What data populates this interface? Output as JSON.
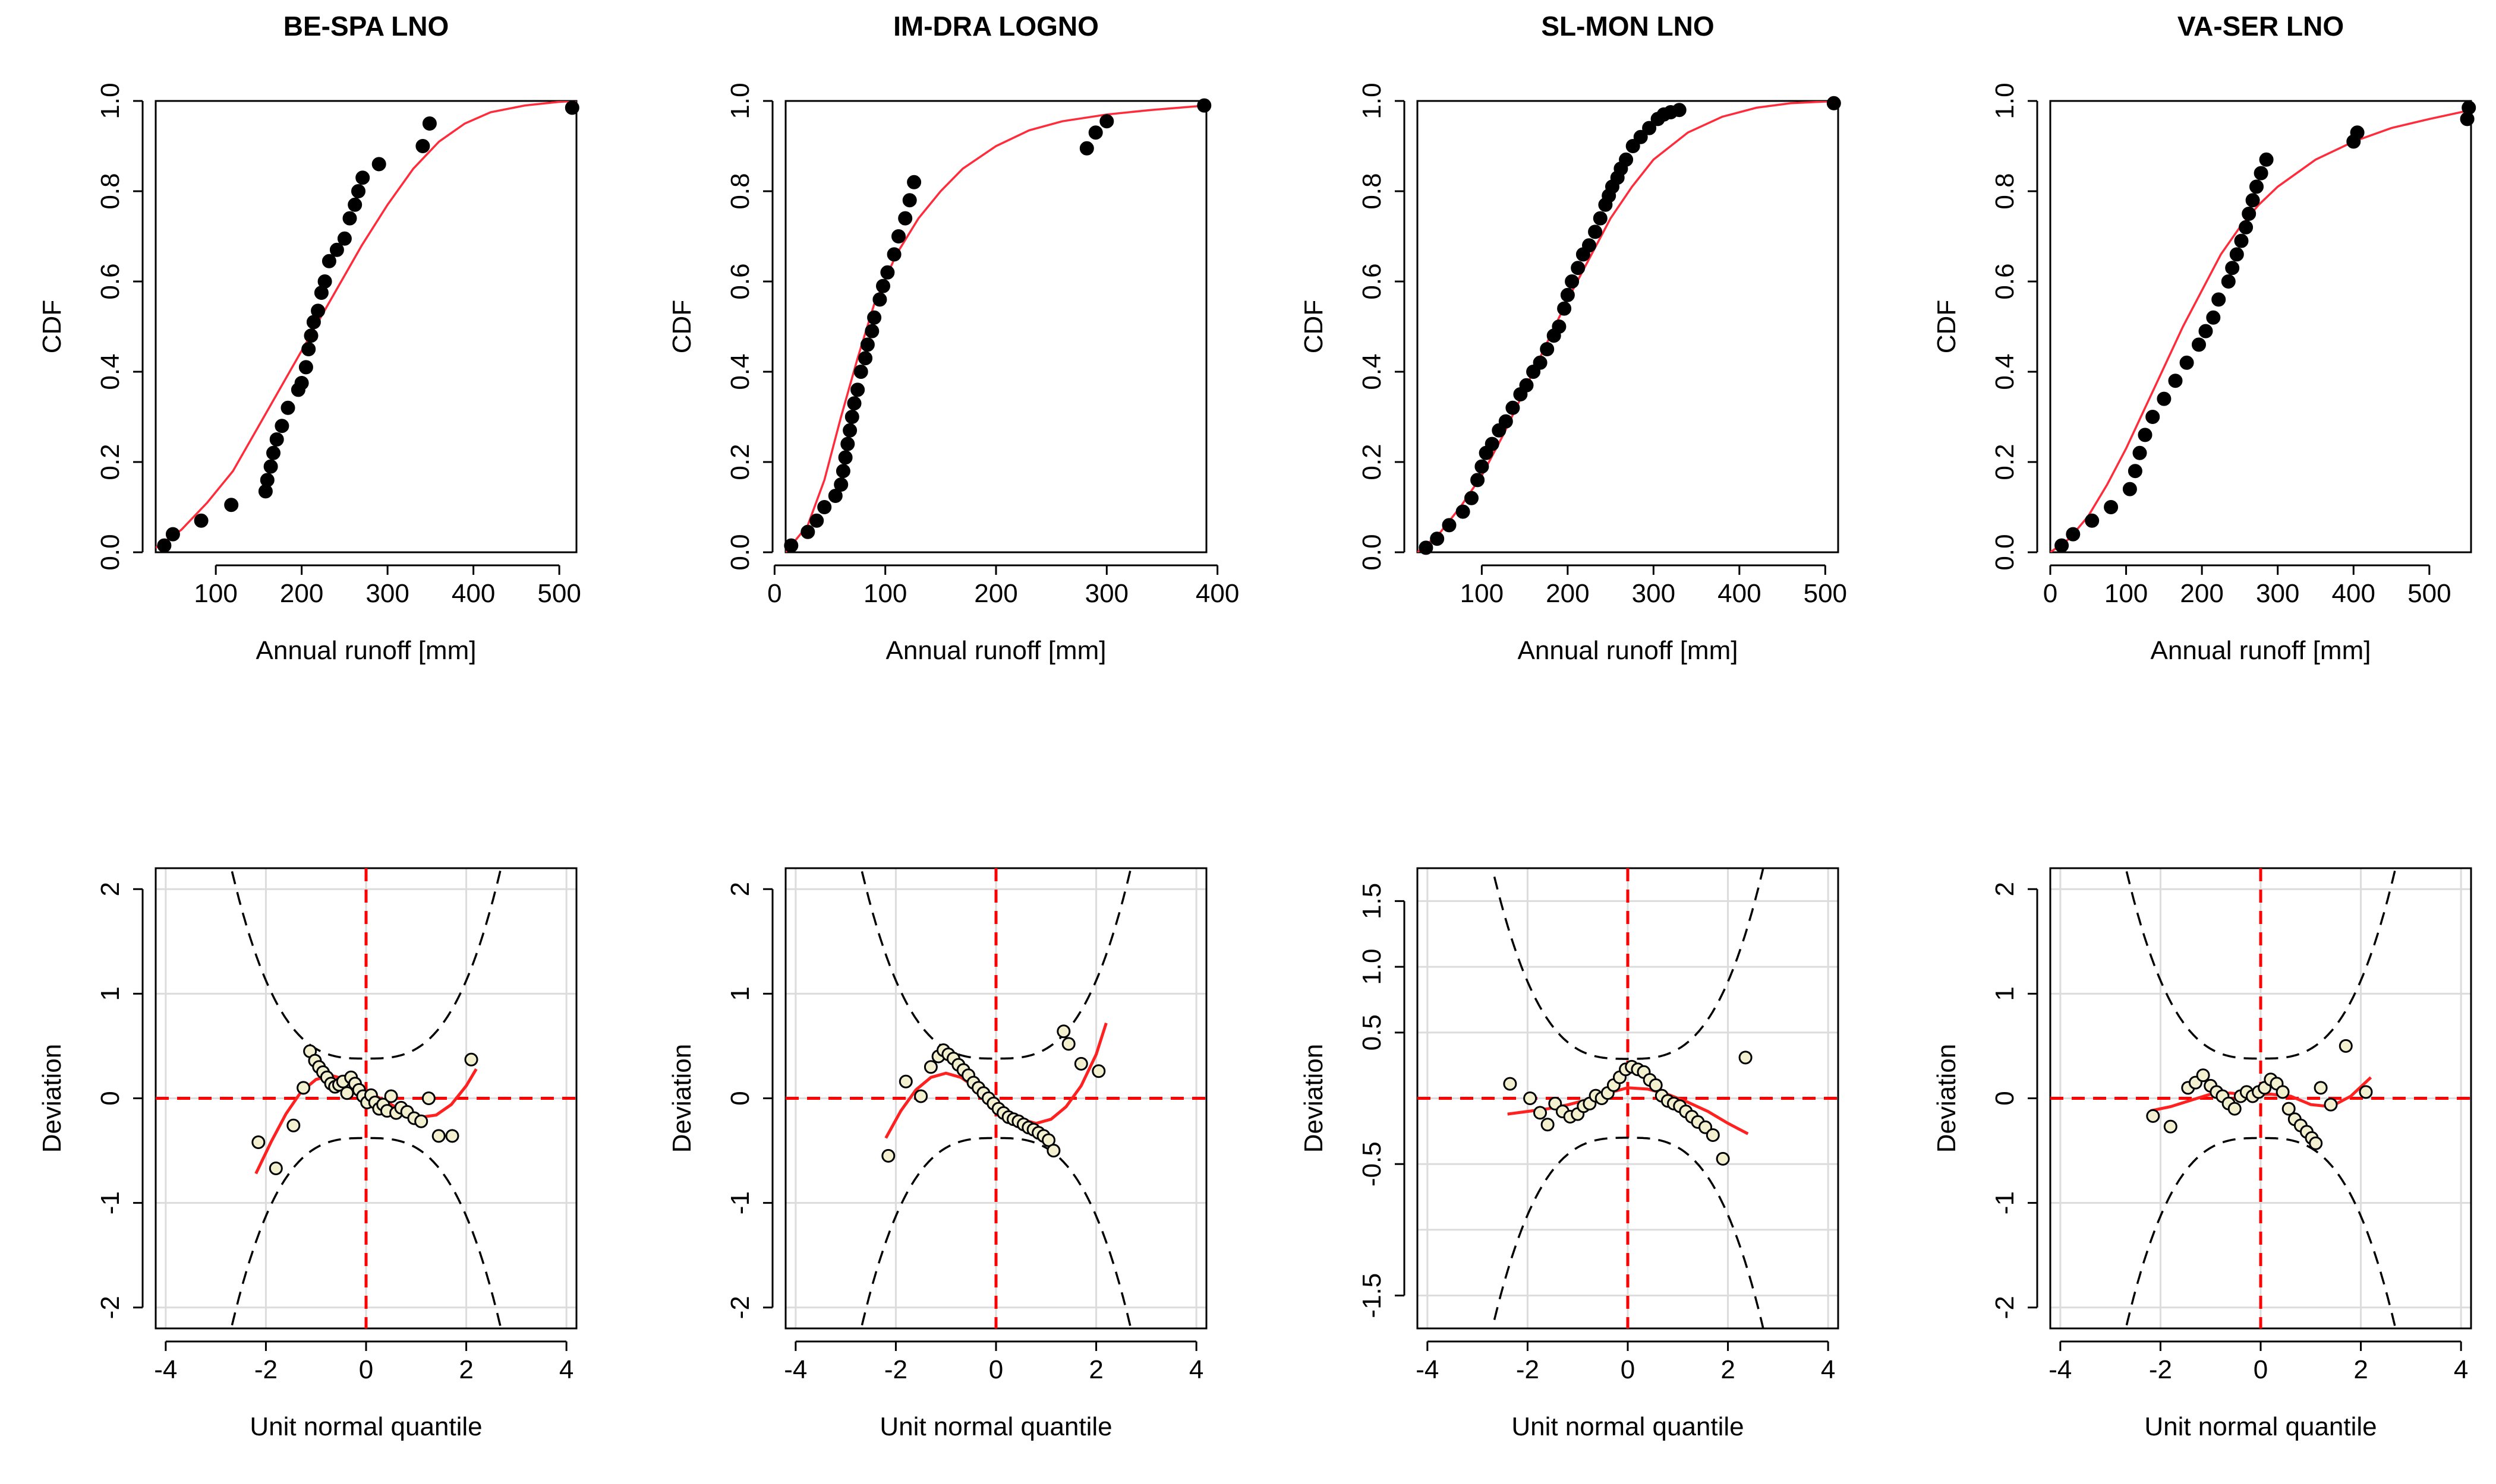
{
  "figure": {
    "titles": [
      "BE-SPA LNO",
      "IM-DRA LOGNO",
      "SL-MON LNO",
      "VA-SER LNO"
    ]
  },
  "chart_data": [
    {
      "type": "scatter",
      "title": "BE-SPA LNO",
      "xlabel": "Annual runoff [mm]",
      "ylabel": "CDF",
      "xlim": [
        30,
        520
      ],
      "ylim": [
        0,
        1.0
      ],
      "xticks": [
        100,
        200,
        300,
        400,
        500
      ],
      "yticks": [
        0.0,
        0.2,
        0.4,
        0.6,
        0.8,
        1.0
      ],
      "grid": false,
      "series": [
        {
          "name": "empirical",
          "style": "solid",
          "x": [
            40,
            50,
            83,
            118,
            158,
            160,
            164,
            167,
            171,
            177,
            184,
            196,
            200,
            205,
            208,
            211,
            214,
            219,
            223,
            227,
            232,
            241,
            250,
            256,
            262,
            266,
            271,
            290,
            341,
            349,
            515
          ],
          "y": [
            0.015,
            0.04,
            0.07,
            0.105,
            0.135,
            0.16,
            0.19,
            0.22,
            0.25,
            0.28,
            0.32,
            0.36,
            0.375,
            0.41,
            0.45,
            0.48,
            0.51,
            0.535,
            0.575,
            0.6,
            0.645,
            0.67,
            0.695,
            0.74,
            0.77,
            0.8,
            0.83,
            0.86,
            0.9,
            0.95,
            0.985
          ]
        },
        {
          "name": "fitted LNO",
          "style": "line",
          "x": [
            30,
            60,
            90,
            120,
            150,
            180,
            210,
            240,
            270,
            300,
            330,
            360,
            390,
            420,
            460,
            500,
            520
          ],
          "y": [
            0.01,
            0.05,
            0.11,
            0.18,
            0.28,
            0.38,
            0.48,
            0.58,
            0.68,
            0.77,
            0.85,
            0.91,
            0.95,
            0.975,
            0.99,
            0.998,
            1.0
          ]
        }
      ]
    },
    {
      "type": "scatter",
      "title": "IM-DRA LOGNO",
      "xlabel": "Annual runoff [mm]",
      "ylabel": "CDF",
      "xlim": [
        10,
        390
      ],
      "ylim": [
        0,
        1.0
      ],
      "xticks": [
        0,
        100,
        200,
        300,
        400
      ],
      "yticks": [
        0.0,
        0.2,
        0.4,
        0.6,
        0.8,
        1.0
      ],
      "grid": false,
      "series": [
        {
          "name": "empirical",
          "style": "solid",
          "x": [
            15,
            30,
            38,
            45,
            55,
            60,
            62,
            64,
            66,
            68,
            70,
            72,
            75,
            78,
            82,
            84,
            88,
            90,
            95,
            98,
            102,
            108,
            112,
            118,
            122,
            126,
            282,
            290,
            300,
            388
          ],
          "y": [
            0.015,
            0.045,
            0.07,
            0.1,
            0.125,
            0.15,
            0.18,
            0.21,
            0.24,
            0.27,
            0.3,
            0.33,
            0.36,
            0.4,
            0.43,
            0.46,
            0.49,
            0.52,
            0.56,
            0.59,
            0.62,
            0.66,
            0.7,
            0.74,
            0.78,
            0.82,
            0.895,
            0.93,
            0.955,
            0.99
          ]
        },
        {
          "name": "fitted LOGNO",
          "style": "line",
          "x": [
            10,
            30,
            45,
            60,
            75,
            90,
            110,
            130,
            150,
            170,
            200,
            230,
            260,
            300,
            340,
            390
          ],
          "y": [
            0.0,
            0.06,
            0.16,
            0.3,
            0.43,
            0.55,
            0.66,
            0.74,
            0.8,
            0.85,
            0.9,
            0.935,
            0.955,
            0.97,
            0.98,
            0.99
          ]
        }
      ]
    },
    {
      "type": "scatter",
      "title": "SL-MON LNO",
      "xlabel": "Annual runoff [mm]",
      "ylabel": "CDF",
      "xlim": [
        25,
        515
      ],
      "ylim": [
        0,
        1.0
      ],
      "xticks": [
        100,
        200,
        300,
        400,
        500
      ],
      "yticks": [
        0.0,
        0.2,
        0.4,
        0.6,
        0.8,
        1.0
      ],
      "grid": false,
      "series": [
        {
          "name": "empirical",
          "style": "solid",
          "x": [
            35,
            48,
            62,
            78,
            88,
            95,
            100,
            105,
            112,
            120,
            128,
            136,
            145,
            152,
            160,
            168,
            176,
            184,
            190,
            196,
            200,
            205,
            212,
            218,
            225,
            232,
            238,
            244,
            248,
            252,
            258,
            262,
            268,
            276,
            285,
            295,
            305,
            312,
            320,
            330,
            510
          ],
          "y": [
            0.01,
            0.03,
            0.06,
            0.09,
            0.12,
            0.16,
            0.19,
            0.22,
            0.24,
            0.27,
            0.29,
            0.32,
            0.35,
            0.37,
            0.4,
            0.42,
            0.45,
            0.48,
            0.5,
            0.54,
            0.57,
            0.6,
            0.63,
            0.66,
            0.68,
            0.71,
            0.74,
            0.77,
            0.79,
            0.81,
            0.83,
            0.85,
            0.87,
            0.9,
            0.92,
            0.94,
            0.96,
            0.97,
            0.975,
            0.98,
            0.995
          ]
        },
        {
          "name": "fitted LNO",
          "style": "line",
          "x": [
            25,
            50,
            75,
            100,
            125,
            150,
            175,
            200,
            225,
            250,
            275,
            300,
            340,
            380,
            420,
            460,
            515
          ],
          "y": [
            0.0,
            0.04,
            0.1,
            0.17,
            0.26,
            0.36,
            0.46,
            0.56,
            0.65,
            0.74,
            0.81,
            0.87,
            0.93,
            0.965,
            0.985,
            0.995,
            1.0
          ]
        }
      ]
    },
    {
      "type": "scatter",
      "title": "VA-SER LNO",
      "xlabel": "Annual runoff [mm]",
      "ylabel": "CDF",
      "xlim": [
        0,
        555
      ],
      "ylim": [
        0,
        1.0
      ],
      "xticks": [
        0,
        100,
        200,
        300,
        400,
        500
      ],
      "yticks": [
        0.0,
        0.2,
        0.4,
        0.6,
        0.8,
        1.0
      ],
      "grid": false,
      "series": [
        {
          "name": "empirical",
          "style": "solid",
          "x": [
            15,
            30,
            55,
            80,
            105,
            112,
            118,
            125,
            135,
            150,
            165,
            180,
            196,
            205,
            215,
            222,
            235,
            240,
            246,
            252,
            258,
            262,
            267,
            272,
            278,
            285,
            400,
            405,
            550,
            552
          ],
          "y": [
            0.015,
            0.04,
            0.07,
            0.1,
            0.14,
            0.18,
            0.22,
            0.26,
            0.3,
            0.34,
            0.38,
            0.42,
            0.46,
            0.49,
            0.52,
            0.56,
            0.6,
            0.63,
            0.66,
            0.69,
            0.72,
            0.75,
            0.78,
            0.81,
            0.84,
            0.87,
            0.91,
            0.93,
            0.96,
            0.985
          ]
        },
        {
          "name": "fitted LNO",
          "style": "line",
          "x": [
            0,
            25,
            50,
            75,
            100,
            125,
            150,
            175,
            200,
            225,
            250,
            275,
            300,
            350,
            400,
            450,
            500,
            555
          ],
          "y": [
            0.0,
            0.03,
            0.08,
            0.15,
            0.23,
            0.32,
            0.41,
            0.5,
            0.58,
            0.66,
            0.72,
            0.77,
            0.81,
            0.87,
            0.91,
            0.94,
            0.96,
            0.98
          ]
        }
      ]
    },
    {
      "type": "scatter",
      "title": "",
      "xlabel": "Unit normal quantile",
      "ylabel": "Deviation",
      "xlim": [
        -4.2,
        4.2
      ],
      "ylim": [
        -2.2,
        2.2
      ],
      "xticks": [
        -4,
        -2,
        0,
        2,
        4
      ],
      "yticks": [
        -2,
        -1,
        0,
        1,
        2
      ],
      "grid": true,
      "envelope": {
        "center": 0.0,
        "min_halfwidth": 0.38,
        "growth": 0.28
      },
      "series": [
        {
          "name": "deviation",
          "style": "open",
          "x": [
            -2.15,
            -1.8,
            -1.45,
            -1.25,
            -1.12,
            -1.02,
            -0.94,
            -0.86,
            -0.78,
            -0.7,
            -0.62,
            -0.54,
            -0.46,
            -0.38,
            -0.3,
            -0.22,
            -0.14,
            -0.06,
            0.02,
            0.1,
            0.18,
            0.26,
            0.34,
            0.42,
            0.5,
            0.6,
            0.7,
            0.82,
            0.96,
            1.1,
            1.25,
            1.45,
            1.72,
            2.1
          ],
          "y": [
            -0.42,
            -0.67,
            -0.26,
            0.1,
            0.45,
            0.36,
            0.3,
            0.25,
            0.2,
            0.14,
            0.11,
            0.13,
            0.16,
            0.05,
            0.2,
            0.14,
            0.08,
            0.02,
            -0.04,
            0.03,
            -0.04,
            -0.1,
            -0.06,
            -0.12,
            0.02,
            -0.14,
            -0.09,
            -0.13,
            -0.19,
            -0.22,
            0.0,
            -0.36,
            -0.36,
            0.37
          ]
        },
        {
          "name": "smooth",
          "style": "line",
          "x": [
            -2.2,
            -1.9,
            -1.6,
            -1.3,
            -1.0,
            -0.7,
            -0.4,
            -0.1,
            0.2,
            0.5,
            0.8,
            1.1,
            1.4,
            1.7,
            2.0,
            2.2
          ],
          "y": [
            -0.72,
            -0.42,
            -0.15,
            0.06,
            0.18,
            0.22,
            0.18,
            0.1,
            0.02,
            -0.06,
            -0.13,
            -0.18,
            -0.16,
            -0.06,
            0.12,
            0.28
          ]
        }
      ]
    },
    {
      "type": "scatter",
      "title": "",
      "xlabel": "Unit normal quantile",
      "ylabel": "Deviation",
      "xlim": [
        -4.2,
        4.2
      ],
      "ylim": [
        -2.2,
        2.2
      ],
      "xticks": [
        -4,
        -2,
        0,
        2,
        4
      ],
      "yticks": [
        -2,
        -1,
        0,
        1,
        2
      ],
      "grid": true,
      "envelope": {
        "center": 0.0,
        "min_halfwidth": 0.38,
        "growth": 0.28
      },
      "series": [
        {
          "name": "deviation",
          "style": "open",
          "x": [
            -2.15,
            -1.8,
            -1.5,
            -1.3,
            -1.15,
            -1.05,
            -0.95,
            -0.85,
            -0.75,
            -0.65,
            -0.55,
            -0.45,
            -0.35,
            -0.25,
            -0.15,
            -0.05,
            0.05,
            0.15,
            0.25,
            0.35,
            0.45,
            0.55,
            0.65,
            0.75,
            0.85,
            0.95,
            1.05,
            1.15,
            1.35,
            1.45,
            1.7,
            2.05
          ],
          "y": [
            -0.55,
            0.16,
            0.02,
            0.3,
            0.4,
            0.46,
            0.42,
            0.38,
            0.32,
            0.27,
            0.22,
            0.15,
            0.1,
            0.05,
            0.0,
            -0.05,
            -0.1,
            -0.14,
            -0.18,
            -0.2,
            -0.22,
            -0.25,
            -0.28,
            -0.3,
            -0.33,
            -0.36,
            -0.4,
            -0.5,
            0.64,
            0.52,
            0.33,
            0.26
          ]
        },
        {
          "name": "smooth",
          "style": "line",
          "x": [
            -2.2,
            -1.9,
            -1.6,
            -1.3,
            -1.0,
            -0.7,
            -0.4,
            -0.1,
            0.2,
            0.5,
            0.8,
            1.1,
            1.4,
            1.7,
            2.0,
            2.2
          ],
          "y": [
            -0.38,
            -0.12,
            0.08,
            0.2,
            0.24,
            0.2,
            0.1,
            -0.02,
            -0.12,
            -0.2,
            -0.24,
            -0.2,
            -0.08,
            0.12,
            0.42,
            0.72
          ]
        }
      ]
    },
    {
      "type": "scatter",
      "title": "",
      "xlabel": "Unit normal quantile",
      "ylabel": "Deviation",
      "xlim": [
        -4.2,
        4.2
      ],
      "ylim": [
        -1.75,
        1.75
      ],
      "xticks": [
        -4,
        -2,
        0,
        2,
        4
      ],
      "yticks": [
        -1.5,
        -0.5,
        0.5,
        1.0,
        1.5
      ],
      "grid": true,
      "envelope": {
        "center": 0.0,
        "min_halfwidth": 0.3,
        "growth": 0.22
      },
      "series": [
        {
          "name": "deviation",
          "style": "open",
          "x": [
            -2.35,
            -1.95,
            -1.75,
            -1.6,
            -1.45,
            -1.3,
            -1.15,
            -1.0,
            -0.88,
            -0.76,
            -0.64,
            -0.52,
            -0.4,
            -0.28,
            -0.16,
            -0.04,
            0.08,
            0.2,
            0.32,
            0.44,
            0.56,
            0.68,
            0.8,
            0.92,
            1.04,
            1.16,
            1.28,
            1.4,
            1.55,
            1.7,
            1.9,
            2.35
          ],
          "y": [
            0.11,
            0.0,
            -0.11,
            -0.2,
            -0.04,
            -0.1,
            -0.14,
            -0.12,
            -0.06,
            -0.04,
            0.02,
            0.0,
            0.04,
            0.1,
            0.16,
            0.22,
            0.24,
            0.22,
            0.2,
            0.14,
            0.1,
            0.02,
            -0.02,
            -0.04,
            -0.06,
            -0.1,
            -0.14,
            -0.18,
            -0.22,
            -0.28,
            -0.46,
            0.31
          ]
        },
        {
          "name": "smooth",
          "style": "line",
          "x": [
            -2.4,
            -2.0,
            -1.6,
            -1.2,
            -0.8,
            -0.4,
            0.0,
            0.4,
            0.8,
            1.2,
            1.6,
            2.0,
            2.4
          ],
          "y": [
            -0.12,
            -0.1,
            -0.08,
            -0.05,
            -0.01,
            0.04,
            0.08,
            0.07,
            0.03,
            -0.03,
            -0.1,
            -0.19,
            -0.27
          ]
        }
      ]
    },
    {
      "type": "scatter",
      "title": "",
      "xlabel": "Unit normal quantile",
      "ylabel": "Deviation",
      "xlim": [
        -4.2,
        4.2
      ],
      "ylim": [
        -2.2,
        2.2
      ],
      "xticks": [
        -4,
        -2,
        0,
        2,
        4
      ],
      "yticks": [
        -2,
        -1,
        0,
        1,
        2
      ],
      "grid": true,
      "envelope": {
        "center": 0.0,
        "min_halfwidth": 0.38,
        "growth": 0.28
      },
      "series": [
        {
          "name": "deviation",
          "style": "open",
          "x": [
            -2.15,
            -1.8,
            -1.45,
            -1.3,
            -1.15,
            -1.0,
            -0.88,
            -0.76,
            -0.64,
            -0.52,
            -0.4,
            -0.28,
            -0.16,
            -0.04,
            0.08,
            0.2,
            0.32,
            0.44,
            0.56,
            0.68,
            0.8,
            0.92,
            1.02,
            1.1,
            1.2,
            1.4,
            1.7,
            2.1
          ],
          "y": [
            -0.17,
            -0.27,
            0.1,
            0.15,
            0.22,
            0.12,
            0.06,
            0.02,
            -0.05,
            -0.1,
            0.02,
            0.06,
            0.02,
            0.06,
            0.1,
            0.18,
            0.14,
            0.06,
            -0.1,
            -0.2,
            -0.26,
            -0.32,
            -0.38,
            -0.43,
            0.1,
            -0.06,
            0.5,
            0.06
          ]
        },
        {
          "name": "smooth",
          "style": "line",
          "x": [
            -2.2,
            -1.8,
            -1.4,
            -1.0,
            -0.6,
            -0.2,
            0.2,
            0.6,
            1.0,
            1.4,
            1.8,
            2.2
          ],
          "y": [
            -0.12,
            -0.08,
            -0.02,
            0.04,
            0.05,
            0.03,
            0.04,
            0.02,
            -0.06,
            -0.08,
            0.02,
            0.2
          ]
        }
      ]
    }
  ]
}
